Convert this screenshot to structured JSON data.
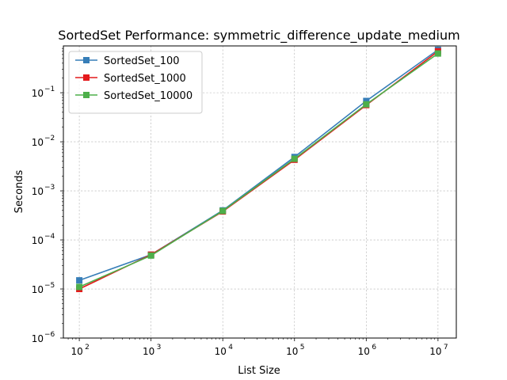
{
  "chart_data": {
    "type": "line",
    "title": "SortedSet Performance: symmetric_difference_update_medium",
    "xlabel": "List Size",
    "ylabel": "Seconds",
    "xscale": "log",
    "yscale": "log",
    "xlim": [
      60,
      18000000
    ],
    "ylim": [
      1e-06,
      0.9
    ],
    "x": [
      100,
      1000,
      10000,
      100000,
      1000000,
      10000000
    ],
    "x_ticks": [
      {
        "value": 100,
        "base": "10",
        "exp": "2"
      },
      {
        "value": 1000,
        "base": "10",
        "exp": "3"
      },
      {
        "value": 10000,
        "base": "10",
        "exp": "4"
      },
      {
        "value": 100000,
        "base": "10",
        "exp": "5"
      },
      {
        "value": 1000000,
        "base": "10",
        "exp": "6"
      },
      {
        "value": 10000000,
        "base": "10",
        "exp": "7"
      }
    ],
    "y_ticks": [
      {
        "value": 1e-06,
        "base": "10",
        "exp": "−6"
      },
      {
        "value": 1e-05,
        "base": "10",
        "exp": "−5"
      },
      {
        "value": 0.0001,
        "base": "10",
        "exp": "−4"
      },
      {
        "value": 0.001,
        "base": "10",
        "exp": "−3"
      },
      {
        "value": 0.01,
        "base": "10",
        "exp": "−2"
      },
      {
        "value": 0.1,
        "base": "10",
        "exp": "−1"
      }
    ],
    "grid": true,
    "legend_position": "upper-left",
    "series": [
      {
        "name": "SortedSet_100",
        "color": "#377eb8",
        "marker": "square",
        "values": [
          1.5e-05,
          5e-05,
          0.0004,
          0.0049,
          0.068,
          0.75
        ]
      },
      {
        "name": "SortedSet_1000",
        "color": "#e41a1c",
        "marker": "square",
        "values": [
          1e-05,
          5e-05,
          0.00038,
          0.0043,
          0.056,
          0.7
        ]
      },
      {
        "name": "SortedSet_10000",
        "color": "#4daf4a",
        "marker": "square",
        "values": [
          1.1e-05,
          4.8e-05,
          0.00039,
          0.0045,
          0.058,
          0.63
        ]
      }
    ]
  }
}
